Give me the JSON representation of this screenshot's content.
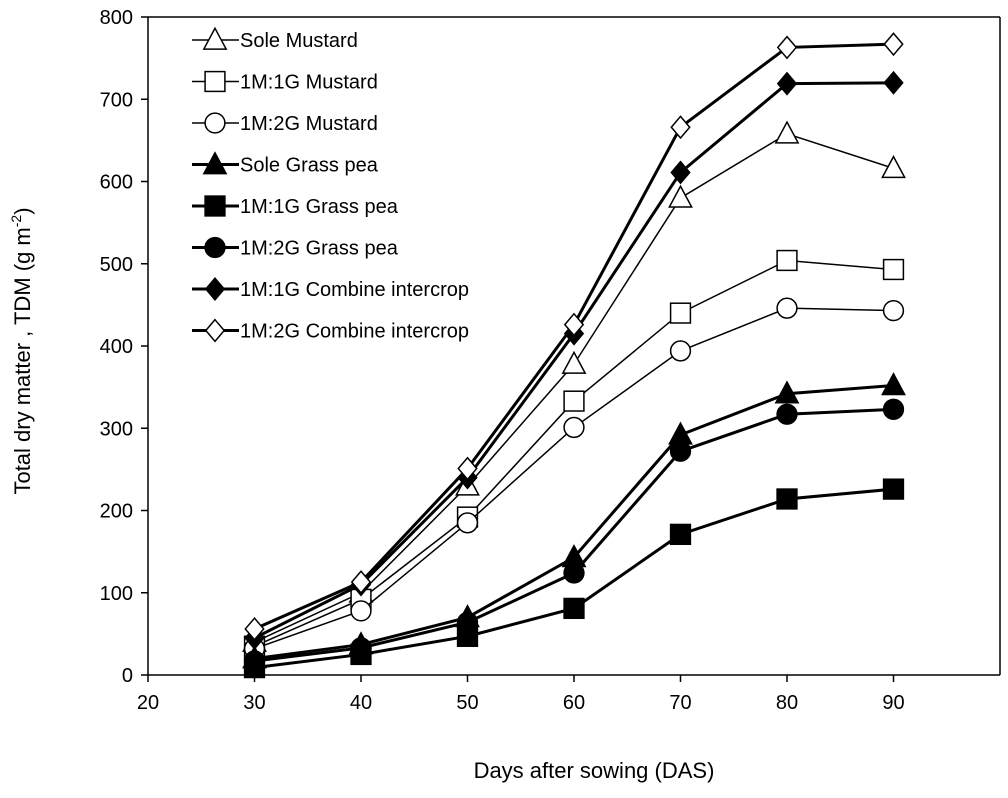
{
  "chart_data": {
    "type": "line",
    "xlabel": "Days after sowing (DAS)",
    "ylabel": "Total dry matter , TDM (g m",
    "ylabel_unit_sup": "-2",
    "ylabel_close": ")",
    "xlim": [
      20,
      100
    ],
    "ylim": [
      0,
      800
    ],
    "x_ticks": [
      20,
      30,
      40,
      50,
      60,
      70,
      80,
      90
    ],
    "y_ticks": [
      0,
      100,
      200,
      300,
      400,
      500,
      600,
      700,
      800
    ],
    "grid": false,
    "legend_position": "top-left",
    "x": [
      30,
      40,
      50,
      60,
      70,
      80,
      90
    ],
    "series": [
      {
        "name": "Sole Mustard",
        "marker": "triangle",
        "filled": false,
        "bold": false,
        "values": [
          40,
          100,
          230,
          378,
          580,
          658,
          616
        ]
      },
      {
        "name": "1M:1G Mustard",
        "marker": "square",
        "filled": false,
        "bold": false,
        "values": [
          35,
          92,
          192,
          333,
          440,
          504,
          493
        ]
      },
      {
        "name": "1M:2G Mustard",
        "marker": "circle",
        "filled": false,
        "bold": false,
        "values": [
          32,
          78,
          185,
          301,
          394,
          446,
          443
        ]
      },
      {
        "name": "Sole Grass pea",
        "marker": "triangle",
        "filled": true,
        "bold": true,
        "values": [
          20,
          37,
          70,
          143,
          292,
          342,
          352
        ]
      },
      {
        "name": "1M:1G Grass pea",
        "marker": "square",
        "filled": true,
        "bold": true,
        "values": [
          9,
          25,
          47,
          81,
          171,
          214,
          226
        ]
      },
      {
        "name": "1M:2G Grass pea",
        "marker": "circle",
        "filled": true,
        "bold": true,
        "values": [
          17,
          33,
          64,
          124,
          272,
          317,
          323
        ]
      },
      {
        "name": "1M:1G Combine intercrop",
        "marker": "diamond",
        "filled": true,
        "bold": true,
        "values": [
          45,
          110,
          240,
          415,
          611,
          719,
          720
        ]
      },
      {
        "name": "1M:2G Combine intercrop",
        "marker": "diamond",
        "filled": false,
        "bold": true,
        "values": [
          56,
          113,
          251,
          426,
          666,
          763,
          767
        ]
      }
    ]
  }
}
